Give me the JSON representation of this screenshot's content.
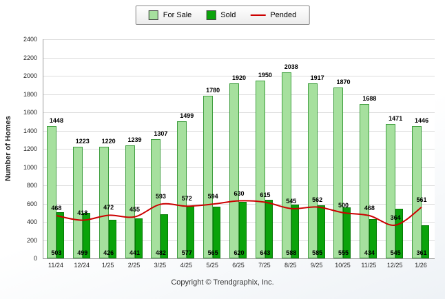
{
  "legend": {
    "for_sale": "For Sale",
    "sold": "Sold",
    "pended": "Pended"
  },
  "ylabel": "Number of Homes",
  "footer": "Copyright © Trendgraphix, Inc.",
  "colors": {
    "for_sale": "#A6E09E",
    "for_sale_border": "#3F9E3F",
    "sold": "#0BA30B",
    "sold_border": "#067A06",
    "pended": "#CC0000",
    "gridline": "#DCDCDC",
    "axis": "#9A9A9A"
  },
  "chart_data": {
    "type": "bar",
    "categories": [
      "11/24",
      "12/24",
      "1/25",
      "2/25",
      "3/25",
      "4/25",
      "5/25",
      "6/25",
      "7/25",
      "8/25",
      "9/25",
      "10/25",
      "11/25",
      "12/25",
      "1/26"
    ],
    "series": [
      {
        "name": "For Sale",
        "type": "bar",
        "values": [
          1448,
          1223,
          1220,
          1239,
          1307,
          1499,
          1780,
          1920,
          1950,
          2038,
          1917,
          1870,
          1688,
          1471,
          1446
        ]
      },
      {
        "name": "Sold",
        "type": "bar",
        "values": [
          503,
          499,
          426,
          441,
          482,
          577,
          565,
          620,
          643,
          588,
          585,
          555,
          434,
          545,
          361
        ]
      },
      {
        "name": "Pended",
        "type": "line",
        "values": [
          468,
          418,
          472,
          455,
          593,
          572,
          594,
          630,
          615,
          545,
          562,
          500,
          468,
          364,
          561
        ]
      }
    ],
    "title": "",
    "xlabel": "",
    "ylabel": "Number of Homes",
    "ylim": [
      0,
      2400
    ],
    "ytick_step": 200,
    "grid": true,
    "legend_position": "top"
  }
}
